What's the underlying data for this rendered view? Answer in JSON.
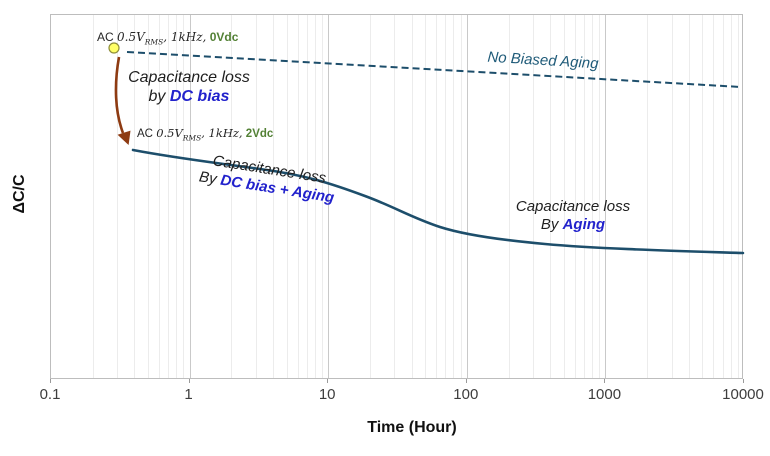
{
  "colors": {
    "series_line": "#1d4e6b",
    "emphasis_blue": "#2222cc",
    "condition_green": "#538135",
    "arrow_brown": "#8e3b12",
    "marker_yellow": "#ffff66",
    "grid_minor": "#ececec",
    "grid_major": "#c9c9c9"
  },
  "axis": {
    "y_label": "ΔC/C",
    "x_label": "Time (Hour)"
  },
  "annotations": {
    "ac_0vdc": {
      "label": "AC",
      "voltage": "0.5V",
      "sub": "RMS",
      "freq": ", 1kHz,",
      "value": "0Vdc"
    },
    "ac_2vdc": {
      "label": "AC",
      "voltage": "0.5V",
      "sub": "RMS",
      "freq": ", 1kHz,",
      "value": "2Vdc"
    },
    "loss_dc_bias": {
      "line1": "Capacitance loss",
      "line2_prefix": "by ",
      "line2_em": "DC bias"
    },
    "loss_dc_aging": {
      "line1": "Capacitance loss",
      "line2_prefix": "By ",
      "line2_em": "DC bias + Aging"
    },
    "loss_aging": {
      "line1": "Capacitance loss",
      "line2_prefix": "By ",
      "line2_em": "Aging"
    },
    "no_biased_aging": "No Biased Aging"
  },
  "chart_data": {
    "type": "line",
    "x_scale": "log",
    "x_range": [
      0.1,
      10000
    ],
    "x_ticks": [
      "0.1",
      "1",
      "10",
      "100",
      "1000",
      "10000"
    ],
    "xlabel": "Time (Hour)",
    "ylabel": "ΔC/C",
    "y_axis_numeric_labels": false,
    "grid": "log-minor-vertical",
    "note": "Y axis has no numeric labels; y_rel values are estimated capacitance-loss depth as a fraction of plot height from the top (larger = more loss).",
    "series": [
      {
        "name": "No Biased Aging — AC 0.5V RMS, 1kHz, 0Vdc",
        "style": "dashed",
        "color": "#1d4e6b",
        "x": [
          0.3,
          1,
          10,
          100,
          1000,
          10000
        ],
        "y_rel": [
          0.1,
          0.12,
          0.14,
          0.16,
          0.18,
          0.2
        ]
      },
      {
        "name": "Biased Aging — AC 0.5V RMS, 1kHz, 2Vdc",
        "style": "solid",
        "color": "#1d4e6b",
        "x": [
          0.4,
          1,
          3,
          10,
          30,
          100,
          300,
          1000,
          10000
        ],
        "y_rel": [
          0.37,
          0.4,
          0.43,
          0.46,
          0.55,
          0.61,
          0.63,
          0.64,
          0.65
        ]
      }
    ],
    "start_marker": {
      "series": "No Biased Aging",
      "x": 0.3,
      "shape": "circle",
      "fill": "#ffff66"
    },
    "arrow": {
      "meaning": "Capacitance loss by DC bias",
      "from_series": "No Biased Aging",
      "to_series": "Biased Aging",
      "color": "#8e3b12"
    }
  }
}
